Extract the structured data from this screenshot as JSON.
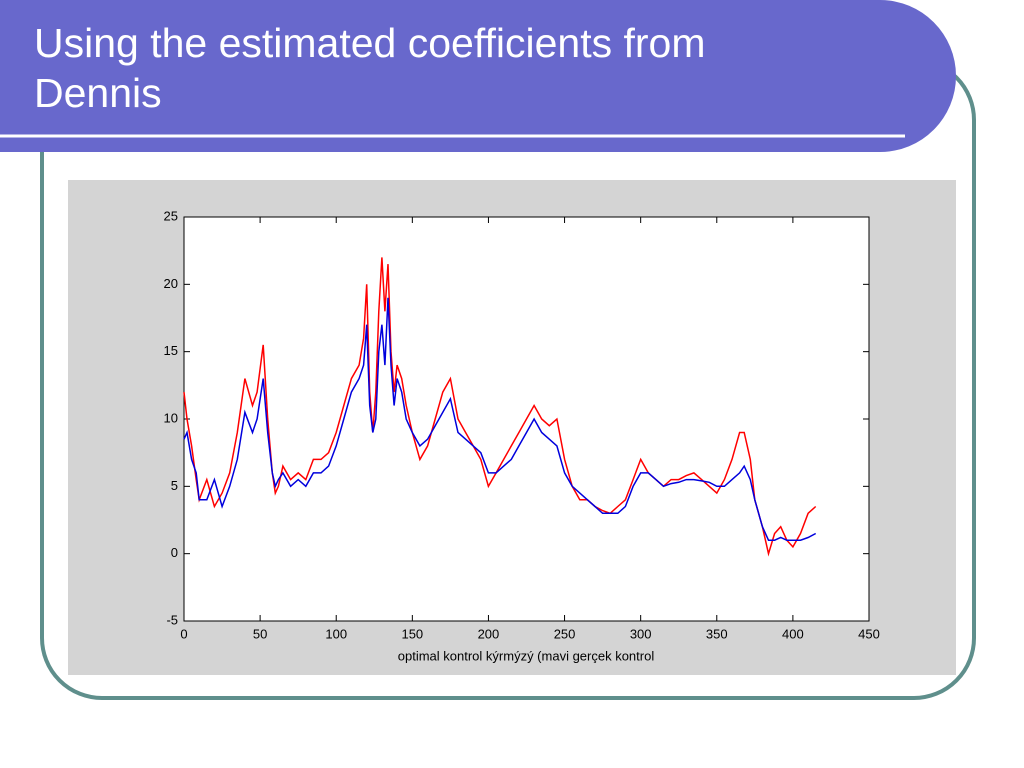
{
  "chart_data": {
    "type": "line",
    "title": "Using the estimated coefficients from Dennis",
    "xlabel": "optimal kontrol kýrmýzý (mavi gerçek kontrol",
    "xlim": [
      0,
      450
    ],
    "ylim": [
      -5,
      25
    ],
    "xticks": [
      0,
      50,
      100,
      150,
      200,
      250,
      300,
      350,
      400,
      450
    ],
    "yticks": [
      -5,
      0,
      5,
      10,
      15,
      20,
      25
    ],
    "grid": false,
    "x": [
      0,
      2,
      5,
      8,
      10,
      15,
      20,
      25,
      30,
      35,
      40,
      45,
      48,
      52,
      55,
      58,
      60,
      62,
      65,
      70,
      75,
      80,
      85,
      90,
      95,
      100,
      105,
      110,
      115,
      118,
      120,
      122,
      124,
      126,
      128,
      130,
      132,
      134,
      136,
      138,
      140,
      143,
      146,
      150,
      155,
      160,
      165,
      170,
      175,
      180,
      185,
      190,
      195,
      200,
      205,
      210,
      215,
      220,
      225,
      230,
      235,
      240,
      245,
      250,
      255,
      260,
      265,
      270,
      275,
      280,
      285,
      290,
      295,
      300,
      305,
      310,
      315,
      320,
      325,
      330,
      335,
      340,
      345,
      350,
      355,
      360,
      365,
      368,
      372,
      375,
      380,
      384,
      388,
      392,
      396,
      400,
      405,
      410,
      415
    ],
    "series": [
      {
        "color": "#ff0000",
        "values": [
          12,
          10,
          8,
          5.5,
          4,
          5.5,
          3.5,
          4.5,
          6,
          9,
          13,
          11,
          12,
          15.5,
          10,
          6,
          4.5,
          5,
          6.5,
          5.5,
          6,
          5.5,
          7,
          7,
          7.5,
          9,
          11,
          13,
          14,
          16,
          20,
          12,
          9,
          12,
          18,
          22,
          18,
          21.5,
          15,
          12,
          14,
          13,
          11,
          9,
          7,
          8,
          10,
          12,
          13,
          10,
          9,
          8,
          7,
          5,
          6,
          7,
          8,
          9,
          10,
          11,
          10,
          9.5,
          10,
          7,
          5,
          4,
          4,
          3.5,
          3.2,
          3,
          3.5,
          4,
          5.5,
          7,
          6,
          5.5,
          5,
          5.5,
          5.5,
          5.8,
          6,
          5.5,
          5,
          4.5,
          5.5,
          7,
          9,
          9,
          7,
          4,
          2,
          0,
          1.5,
          2,
          1,
          0.5,
          1.5,
          3,
          3.5
        ]
      },
      {
        "color": "#0000dd",
        "values": [
          8.5,
          9,
          7,
          6,
          4,
          4,
          5.5,
          3.5,
          5,
          7,
          10.5,
          9,
          10,
          13,
          9,
          6,
          5,
          5.5,
          6,
          5,
          5.5,
          5,
          6,
          6,
          6.5,
          8,
          10,
          12,
          13,
          14,
          17,
          11,
          9,
          10,
          15,
          17,
          14,
          19,
          14,
          11,
          13,
          12,
          10,
          9,
          8,
          8.5,
          9.5,
          10.5,
          11.5,
          9,
          8.5,
          8,
          7.5,
          6,
          6,
          6.5,
          7,
          8,
          9,
          10,
          9,
          8.5,
          8,
          6,
          5,
          4.5,
          4,
          3.5,
          3,
          3,
          3,
          3.5,
          5,
          6,
          6,
          5.5,
          5,
          5.2,
          5.3,
          5.5,
          5.5,
          5.4,
          5.3,
          5,
          5,
          5.5,
          6,
          6.5,
          5.5,
          4,
          2,
          1,
          1,
          1.2,
          1,
          1,
          1,
          1.2,
          1.5
        ]
      }
    ]
  }
}
